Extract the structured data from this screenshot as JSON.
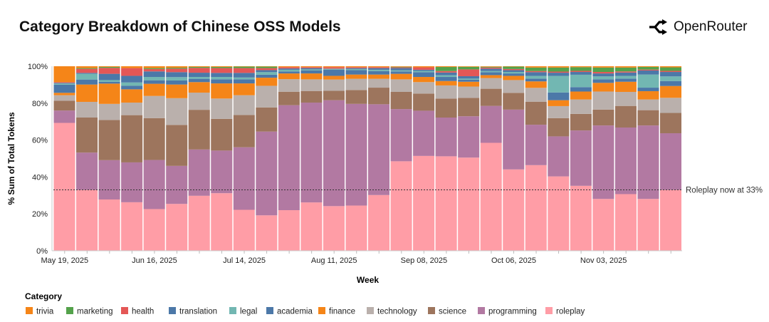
{
  "header": {
    "title": "Category Breakdown of Chinese OSS Models",
    "brand": "OpenRouter"
  },
  "chart_data": {
    "type": "bar",
    "stacked": true,
    "normalized": true,
    "title": "Category Breakdown of Chinese OSS Models",
    "xlabel": "Week",
    "ylabel": "% Sum of Total Tokens",
    "ylim": [
      0,
      100
    ],
    "yticks": [
      "0%",
      "20%",
      "40%",
      "60%",
      "80%",
      "100%"
    ],
    "xtick_labels": [
      "May 19, 2025",
      "Jun 16, 2025",
      "Jul 14, 2025",
      "Aug 11, 2025",
      "Sep 08, 2025",
      "Oct 06, 2025",
      "Nov 03, 2025"
    ],
    "categories": [
      "2025-05-19",
      "2025-05-26",
      "2025-06-02",
      "2025-06-09",
      "2025-06-16",
      "2025-06-23",
      "2025-06-30",
      "2025-07-07",
      "2025-07-14",
      "2025-07-21",
      "2025-07-28",
      "2025-08-04",
      "2025-08-11",
      "2025-08-18",
      "2025-08-25",
      "2025-09-01",
      "2025-09-08",
      "2025-09-15",
      "2025-09-22",
      "2025-09-29",
      "2025-10-06",
      "2025-10-13",
      "2025-10-20",
      "2025-10-27",
      "2025-11-03",
      "2025-11-10",
      "2025-11-17",
      "2025-11-24"
    ],
    "legend_title": "Category",
    "legend_position": "bottom",
    "legend_order": [
      "trivia",
      "marketing",
      "health",
      "translation",
      "legal",
      "academia",
      "finance",
      "technology",
      "science",
      "programming",
      "roleplay"
    ],
    "series": [
      {
        "name": "roleplay",
        "color": "#ff9da6",
        "values": [
          69.3,
          33.0,
          27.8,
          26.3,
          22.6,
          25.4,
          29.8,
          31.2,
          22.2,
          19.2,
          22.0,
          26.2,
          24.2,
          24.5,
          30.2,
          48.5,
          51.4,
          51.2,
          50.5,
          58.5,
          44.1,
          46.4,
          40.3,
          35.2,
          28.1,
          30.7,
          28.1,
          33.0
        ]
      },
      {
        "name": "programming",
        "color": "#b279a2",
        "values": [
          6.7,
          20.2,
          21.3,
          21.6,
          26.6,
          20.6,
          25.1,
          23.1,
          33.9,
          45.4,
          56.9,
          54.1,
          57.4,
          55.1,
          49.2,
          28.3,
          24.5,
          21.0,
          22.4,
          20.0,
          32.4,
          21.9,
          21.7,
          30.0,
          39.8,
          36.1,
          39.8,
          30.7
        ]
      },
      {
        "name": "science",
        "color": "#9d755d",
        "values": [
          5.3,
          19.0,
          21.8,
          25.6,
          22.7,
          22.2,
          21.5,
          17.2,
          17.5,
          13.1,
          7.3,
          6.3,
          5.1,
          7.5,
          9.0,
          9.3,
          9.3,
          10.3,
          10.0,
          9.3,
          9.1,
          12.5,
          9.9,
          9.0,
          8.6,
          11.7,
          8.3,
          11.0
        ]
      },
      {
        "name": "technology",
        "color": "#bab0ac",
        "values": [
          3.0,
          8.5,
          8.7,
          6.8,
          12.0,
          14.5,
          9.3,
          11.0,
          10.7,
          11.7,
          6.8,
          6.3,
          6.1,
          6.1,
          4.8,
          6.8,
          6.2,
          7.1,
          6.1,
          5.8,
          6.9,
          7.5,
          6.5,
          7.8,
          9.8,
          7.6,
          5.8,
          8.2
        ]
      },
      {
        "name": "finance",
        "color": "#f58518",
        "values": [
          1.3,
          9.4,
          11.0,
          7.2,
          6.6,
          7.4,
          5.7,
          8.2,
          6.4,
          4.4,
          3.1,
          3.2,
          2.0,
          2.3,
          2.3,
          3.0,
          2.8,
          2.4,
          2.6,
          1.6,
          2.3,
          3.5,
          3.2,
          4.3,
          4.7,
          5.5,
          4.5,
          6.4
        ]
      },
      {
        "name": "academia",
        "color": "#4c78a8",
        "values": [
          4.4,
          2.7,
          1.0,
          1.9,
          1.9,
          2.2,
          1.8,
          2.2,
          2.2,
          1.6,
          1.1,
          1.7,
          3.4,
          2.4,
          1.9,
          1.3,
          2.6,
          2.2,
          1.1,
          1.6,
          1.3,
          1.5,
          4.2,
          2.4,
          1.9,
          1.7,
          1.9,
          2.7
        ]
      },
      {
        "name": "legal",
        "color": "#72b7b2",
        "values": [
          0.6,
          3.1,
          0.9,
          1.8,
          1.8,
          1.8,
          1.0,
          1.3,
          1.0,
          1.4,
          0.9,
          0.5,
          0.5,
          0.6,
          0.7,
          0.6,
          0.7,
          0.9,
          0.6,
          0.6,
          0.8,
          1.5,
          9.0,
          6.7,
          1.6,
          1.5,
          7.1,
          2.5
        ]
      },
      {
        "name": "translation",
        "color": "#4c78a8",
        "values": [
          0.4,
          0.5,
          3.4,
          3.6,
          3.0,
          2.7,
          2.3,
          2.2,
          2.5,
          1.1,
          0.7,
          0.7,
          0,
          0.5,
          0.9,
          1.2,
          0.6,
          1.5,
          1.3,
          1.3,
          1.0,
          2.0,
          1.7,
          1.5,
          1.6,
          1.8,
          2.2,
          2.4
        ]
      },
      {
        "name": "health",
        "color": "#e45756",
        "values": [
          0.4,
          2.2,
          3.2,
          4.2,
          1.3,
          1.9,
          2.6,
          2.6,
          2.6,
          1.1,
          0.7,
          0.5,
          0.8,
          0.5,
          0.5,
          0.4,
          1.3,
          0.8,
          3.7,
          0.6,
          0.6,
          0.6,
          0.6,
          0.6,
          0.8,
          0.6,
          0.5,
          0.6
        ]
      },
      {
        "name": "marketing",
        "color": "#54a24b",
        "values": [
          0,
          0.4,
          0.5,
          0,
          0.5,
          0.5,
          0.5,
          0.6,
          0.8,
          0.8,
          0,
          0,
          0,
          0,
          0,
          0.3,
          0,
          2.2,
          1.4,
          0.4,
          1.3,
          1.9,
          2.2,
          2.0,
          2.4,
          2.1,
          1.4,
          1.9
        ]
      },
      {
        "name": "trivia",
        "color": "#f58518",
        "values": [
          8.6,
          1.0,
          0.4,
          1.0,
          1.0,
          0.8,
          0.4,
          0.4,
          0.2,
          0.2,
          0.5,
          0.5,
          0.5,
          0.5,
          0.5,
          0.3,
          0.6,
          0.4,
          0.3,
          0.3,
          0.2,
          0.7,
          0.7,
          0.5,
          0.7,
          0.7,
          0.4,
          0.6
        ]
      }
    ],
    "reference_line": {
      "value": 33,
      "label": "Roleplay now at 33%",
      "style": "dotted"
    },
    "grid": false
  }
}
